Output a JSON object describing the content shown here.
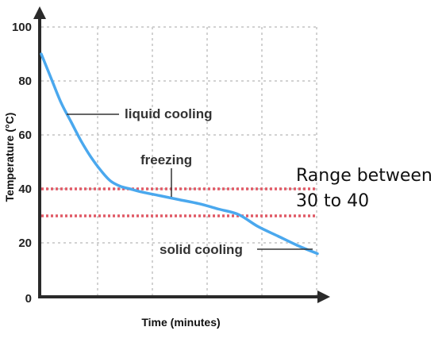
{
  "chart_data": {
    "type": "line",
    "xlabel": "Time (minutes)",
    "ylabel": "Temperature (°C)",
    "ylim": [
      0,
      100
    ],
    "yticks": [
      "0",
      "20",
      "40",
      "60",
      "80",
      "100"
    ],
    "grid": true,
    "series": [
      {
        "color": "#4aa8ee",
        "points": [
          [
            0,
            90
          ],
          [
            0.25,
            81
          ],
          [
            0.5,
            72
          ],
          [
            0.75,
            65
          ],
          [
            1.0,
            58
          ],
          [
            1.25,
            52
          ],
          [
            1.5,
            47
          ],
          [
            1.75,
            43
          ],
          [
            2.0,
            41
          ],
          [
            2.25,
            40
          ],
          [
            2.5,
            39
          ],
          [
            3.0,
            37.5
          ],
          [
            3.5,
            36
          ],
          [
            4.0,
            34.5
          ],
          [
            4.5,
            32.5
          ],
          [
            5.0,
            30.5
          ],
          [
            5.5,
            26
          ],
          [
            6.0,
            22.5
          ],
          [
            6.5,
            19
          ],
          [
            7.0,
            16
          ]
        ]
      }
    ],
    "reference_lines": [
      {
        "y": 40,
        "color": "#e05a66"
      },
      {
        "y": 30,
        "color": "#e05a66"
      }
    ],
    "annotations": {
      "liquid_cooling": "liquid cooling",
      "freezing": "freezing",
      "solid_cooling": "solid cooling",
      "range_line1": "Range between",
      "range_line2": "30 to 40"
    }
  }
}
